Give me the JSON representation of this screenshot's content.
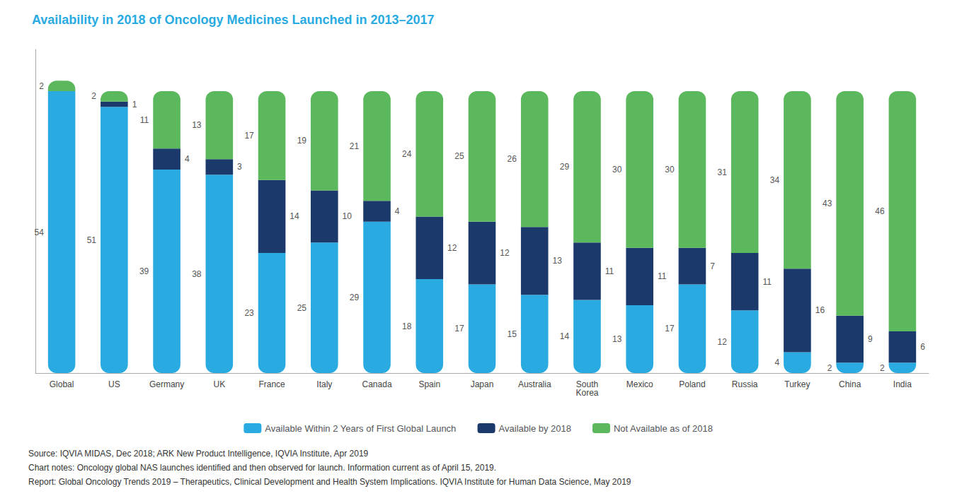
{
  "chart_data": {
    "type": "bar",
    "title": "Availability in 2018 of Oncology Medicines Launched in 2013–2017",
    "categories": [
      "Global",
      "US",
      "Germany",
      "UK",
      "France",
      "Italy",
      "Canada",
      "Spain",
      "Japan",
      "Australia",
      "South\nKorea",
      "Mexico",
      "Poland",
      "Russia",
      "Turkey",
      "China",
      "India"
    ],
    "series": [
      {
        "name": "Available Within 2 Years of First Global Launch",
        "color": "#29ABE2",
        "values": [
          54,
          51,
          39,
          38,
          23,
          25,
          29,
          18,
          17,
          15,
          14,
          13,
          17,
          12,
          4,
          2,
          2
        ]
      },
      {
        "name": "Available by 2018",
        "color": "#1B3A6B",
        "values": [
          0,
          1,
          4,
          3,
          14,
          10,
          4,
          12,
          12,
          13,
          11,
          11,
          7,
          11,
          16,
          9,
          6
        ]
      },
      {
        "name": "Not Available as of 2018",
        "color": "#5CB85C",
        "values": [
          2,
          2,
          11,
          13,
          17,
          19,
          21,
          24,
          25,
          26,
          29,
          30,
          30,
          31,
          34,
          43,
          46
        ]
      }
    ],
    "stacked": true,
    "data_labels": true,
    "ylim": [
      0,
      62
    ],
    "yticks": [],
    "grid": false,
    "tick_labels": "x",
    "legend": "bottom",
    "title_color": "#29ABE2",
    "annotations": [
      "Source: IQVIA MIDAS, Dec 2018; ARK New Product Intelligence, IQVIA Institute, Apr 2019",
      "Chart notes: Oncology global NAS launches identified and then observed for launch. Information current as of April 15, 2019.",
      "Report: Global Oncology Trends 2019 – Therapeutics, Clinical Development and Health System Implications. IQVIA Institute for Human Data Science, May 2019"
    ]
  }
}
